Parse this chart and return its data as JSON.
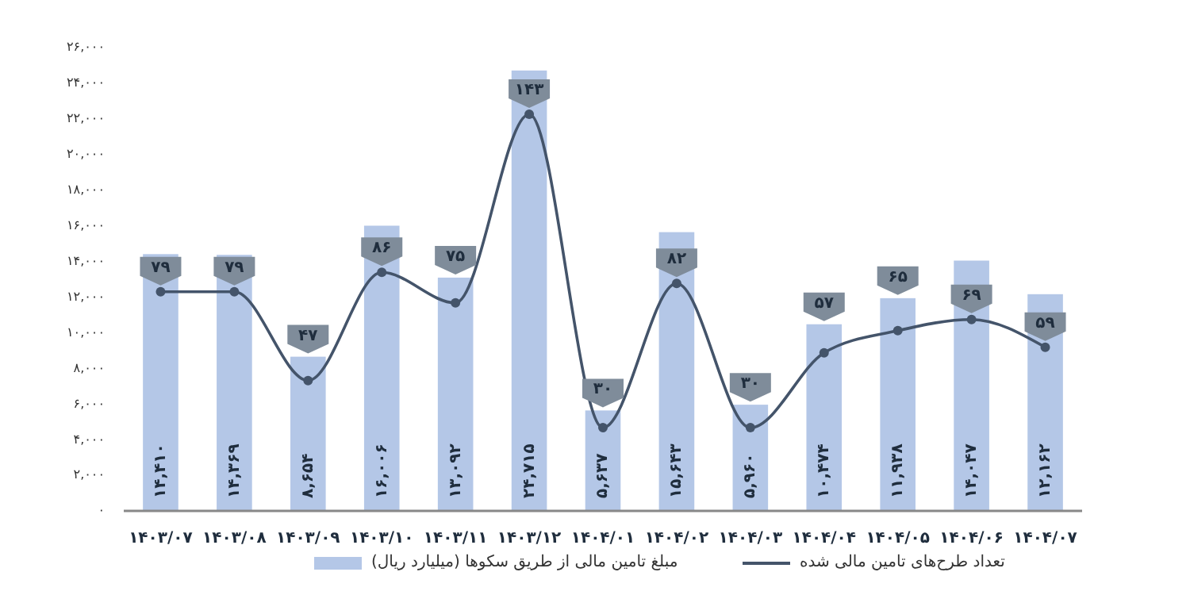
{
  "chart_data": {
    "type": "bar",
    "categories": [
      "۱۴۰۳/۰۷",
      "۱۴۰۳/۰۸",
      "۱۴۰۳/۰۹",
      "۱۴۰۳/۱۰",
      "۱۴۰۳/۱۱",
      "۱۴۰۳/۱۲",
      "۱۴۰۴/۰۱",
      "۱۴۰۴/۰۲",
      "۱۴۰۴/۰۳",
      "۱۴۰۴/۰۴",
      "۱۴۰۴/۰۵",
      "۱۴۰۴/۰۶",
      "۱۴۰۴/۰۷"
    ],
    "series": [
      {
        "name": "مبلغ تامین مالی از طریق سکوها (میلیارد ریال)",
        "color": "#b4c7e7",
        "values": [
          14410,
          14369,
          8654,
          16006,
          13092,
          24715,
          5637,
          15643,
          5960,
          10474,
          11938,
          14047,
          12162
        ],
        "value_labels": [
          "۱۴,۴۱۰",
          "۱۴,۳۶۹",
          "۸,۶۵۴",
          "۱۶,۰۰۶",
          "۱۳,۰۹۲",
          "۲۴,۷۱۵",
          "۵,۶۳۷",
          "۱۵,۶۴۳",
          "۵,۹۶۰",
          "۱۰,۴۷۴",
          "۱۱,۹۳۸",
          "۱۴,۰۴۷",
          "۱۲,۱۶۲"
        ]
      },
      {
        "name": "تعداد طرح‌های تامین مالی شده",
        "type": "line",
        "axis": "y2",
        "color": "#44546a",
        "values": [
          79,
          79,
          47,
          86,
          75,
          143,
          30,
          82,
          30,
          57,
          65,
          69,
          59
        ],
        "value_labels": [
          "۷۹",
          "۷۹",
          "۴۷",
          "۸۶",
          "۷۵",
          "۱۴۳",
          "۳۰",
          "۸۲",
          "۳۰",
          "۵۷",
          "۶۵",
          "۶۹",
          "۵۹"
        ]
      }
    ],
    "ylim": [
      0,
      26000
    ],
    "yticks": [
      {
        "value": 0,
        "label": "۰"
      },
      {
        "value": 2000,
        "label": "۲,۰۰۰"
      },
      {
        "value": 4000,
        "label": "۴,۰۰۰"
      },
      {
        "value": 6000,
        "label": "۶,۰۰۰"
      },
      {
        "value": 8000,
        "label": "۸,۰۰۰"
      },
      {
        "value": 10000,
        "label": "۱۰,۰۰۰"
      },
      {
        "value": 12000,
        "label": "۱۲,۰۰۰"
      },
      {
        "value": 14000,
        "label": "۱۴,۰۰۰"
      },
      {
        "value": 16000,
        "label": "۱۶,۰۰۰"
      },
      {
        "value": 18000,
        "label": "۱۸,۰۰۰"
      },
      {
        "value": 20000,
        "label": "۲۰,۰۰۰"
      },
      {
        "value": 22000,
        "label": "۲۲,۰۰۰"
      },
      {
        "value": 24000,
        "label": "۲۴,۰۰۰"
      },
      {
        "value": 26000,
        "label": "۲۶,۰۰۰"
      }
    ],
    "marker": "circle",
    "legend": "bottom",
    "grid": false
  }
}
